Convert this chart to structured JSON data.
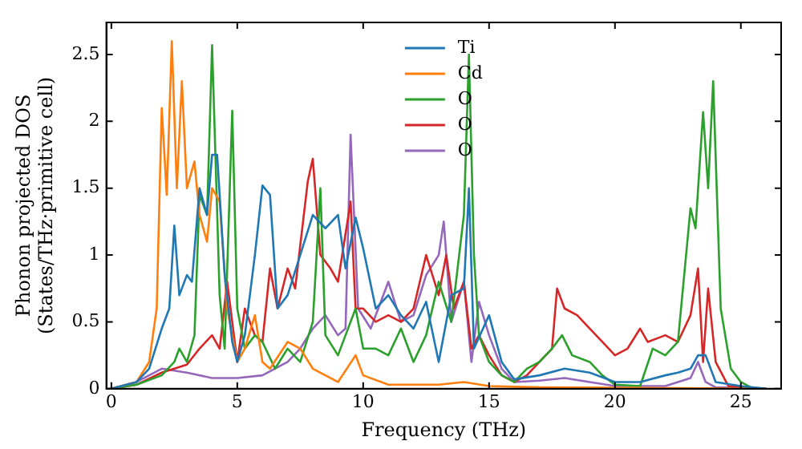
{
  "chart_data": {
    "type": "line",
    "xlabel": "Frequency (THz)",
    "ylabel": "Phonon projected DOS\n(States/THz·primitive cell)",
    "xlim": [
      -0.2,
      26.6
    ],
    "ylim": [
      0,
      2.74
    ],
    "xticks": [
      0,
      5,
      10,
      15,
      20,
      25
    ],
    "yticks": [
      0,
      0.5,
      1,
      1.5,
      2,
      2.5
    ],
    "legend": "top",
    "grid": false,
    "marker": "none",
    "line_style": "solid",
    "series": [
      {
        "name": "Ti",
        "color": "#1f77b4",
        "x": [
          0,
          1,
          1.5,
          2,
          2.3,
          2.5,
          2.7,
          3,
          3.2,
          3.5,
          3.8,
          4,
          4.2,
          4.5,
          4.8,
          5,
          5.3,
          5.7,
          6,
          6.3,
          6.6,
          7,
          7.5,
          8,
          8.5,
          9,
          9.3,
          9.7,
          10,
          10.5,
          11,
          11.5,
          12,
          12.5,
          13,
          13.5,
          14,
          14.2,
          14.4,
          15,
          15.5,
          16,
          17,
          18,
          19,
          20,
          21,
          22,
          22.5,
          23,
          23.3,
          23.6,
          24,
          25,
          26
        ],
        "values": [
          0,
          0.05,
          0.15,
          0.45,
          0.6,
          1.22,
          0.7,
          0.85,
          0.8,
          1.5,
          1.3,
          1.75,
          1.75,
          0.85,
          0.35,
          0.2,
          0.4,
          1.0,
          1.52,
          1.45,
          0.6,
          0.7,
          1.0,
          1.3,
          1.2,
          1.3,
          0.9,
          1.28,
          1.05,
          0.6,
          0.7,
          0.55,
          0.45,
          0.65,
          0.2,
          0.7,
          0.75,
          1.5,
          0.3,
          0.55,
          0.2,
          0.07,
          0.1,
          0.15,
          0.12,
          0.05,
          0.05,
          0.1,
          0.12,
          0.15,
          0.25,
          0.25,
          0.05,
          0.02,
          0
        ]
      },
      {
        "name": "Cd",
        "color": "#ff7f0e",
        "x": [
          0,
          1,
          1.5,
          1.8,
          2,
          2.2,
          2.4,
          2.6,
          2.8,
          3,
          3.3,
          3.5,
          3.8,
          4,
          4.3,
          4.6,
          5,
          5.3,
          5.7,
          6,
          6.3,
          7,
          7.5,
          8,
          9,
          9.7,
          10,
          11,
          13,
          14,
          15,
          17,
          26
        ],
        "values": [
          0,
          0.05,
          0.2,
          0.6,
          2.1,
          1.45,
          2.6,
          1.5,
          2.3,
          1.5,
          1.7,
          1.3,
          1.1,
          1.5,
          1.4,
          0.6,
          0.2,
          0.3,
          0.55,
          0.2,
          0.15,
          0.35,
          0.3,
          0.15,
          0.05,
          0.25,
          0.1,
          0.03,
          0.03,
          0.05,
          0.02,
          0.01,
          0
        ]
      },
      {
        "name": "O",
        "color": "#2ca02c",
        "x": [
          0,
          1,
          2,
          2.5,
          2.7,
          3,
          3.3,
          3.5,
          3.8,
          4,
          4.3,
          4.5,
          4.8,
          5,
          5.3,
          5.7,
          6,
          6.5,
          7,
          7.5,
          8,
          8.3,
          8.5,
          9,
          9.3,
          9.7,
          10,
          10.5,
          11,
          11.5,
          12,
          12.5,
          13,
          13.5,
          14,
          14.2,
          14.4,
          14.6,
          15,
          15.5,
          16,
          16.5,
          17,
          17.5,
          17.9,
          18.3,
          19,
          19.5,
          20,
          21,
          21.5,
          22,
          22.5,
          23,
          23.2,
          23.5,
          23.7,
          23.9,
          24.2,
          24.6,
          25,
          25.5
        ],
        "values": [
          0,
          0.03,
          0.1,
          0.2,
          0.3,
          0.2,
          0.4,
          1.45,
          1.3,
          2.57,
          0.7,
          0.3,
          2.08,
          0.6,
          0.3,
          0.4,
          0.35,
          0.15,
          0.3,
          0.2,
          0.5,
          1.5,
          0.4,
          0.25,
          0.4,
          0.6,
          0.3,
          0.3,
          0.25,
          0.45,
          0.2,
          0.4,
          0.8,
          0.5,
          1.3,
          2.5,
          1.0,
          0.4,
          0.2,
          0.1,
          0.05,
          0.15,
          0.2,
          0.3,
          0.4,
          0.25,
          0.2,
          0.1,
          0.03,
          0.02,
          0.3,
          0.25,
          0.35,
          1.35,
          1.2,
          2.07,
          1.5,
          2.3,
          0.6,
          0.15,
          0.05,
          0
        ]
      },
      {
        "name": "O",
        "color": "#d62728",
        "x": [
          0,
          1,
          2,
          2.5,
          3,
          3.5,
          4,
          4.3,
          4.6,
          5,
          5.3,
          5.7,
          6,
          6.3,
          6.6,
          7,
          7.3,
          7.8,
          8,
          8.3,
          8.7,
          9,
          9.5,
          9.7,
          10,
          10.5,
          11,
          11.5,
          12,
          12.5,
          13,
          13.3,
          13.6,
          14,
          14.3,
          14.6,
          15,
          15.5,
          16,
          16.5,
          17,
          17.5,
          17.7,
          18,
          18.5,
          19,
          19.5,
          20,
          20.5,
          21,
          21.3,
          22,
          22.5,
          23,
          23.3,
          23.5,
          23.7,
          24,
          24.5,
          26
        ],
        "values": [
          0,
          0.03,
          0.12,
          0.15,
          0.18,
          0.3,
          0.4,
          0.3,
          0.8,
          0.2,
          0.6,
          0.4,
          0.35,
          0.9,
          0.6,
          0.9,
          0.75,
          1.55,
          1.72,
          1.0,
          0.9,
          0.8,
          1.4,
          0.6,
          0.6,
          0.5,
          0.55,
          0.5,
          0.6,
          1.0,
          0.7,
          1.0,
          0.6,
          0.8,
          0.3,
          0.4,
          0.25,
          0.1,
          0.05,
          0.1,
          0.2,
          0.3,
          0.75,
          0.6,
          0.55,
          0.45,
          0.35,
          0.25,
          0.3,
          0.45,
          0.35,
          0.4,
          0.35,
          0.55,
          0.9,
          0.2,
          0.75,
          0.2,
          0.02,
          0
        ]
      },
      {
        "name": "O",
        "color": "#9467bd",
        "x": [
          0,
          1,
          2,
          3,
          4,
          5,
          6,
          7,
          7.5,
          8,
          8.5,
          9,
          9.3,
          9.5,
          9.8,
          10.3,
          11,
          11.5,
          12,
          12.5,
          13,
          13.2,
          13.5,
          14,
          14.3,
          14.6,
          15,
          15.5,
          16,
          17,
          18,
          19,
          20,
          22,
          23,
          23.3,
          23.6,
          24,
          26
        ],
        "values": [
          0,
          0.05,
          0.15,
          0.12,
          0.08,
          0.08,
          0.1,
          0.2,
          0.3,
          0.45,
          0.55,
          0.4,
          0.45,
          1.9,
          0.6,
          0.45,
          0.8,
          0.5,
          0.55,
          0.85,
          1.0,
          1.25,
          0.5,
          0.8,
          0.2,
          0.65,
          0.4,
          0.15,
          0.05,
          0.06,
          0.08,
          0.05,
          0.02,
          0.02,
          0.08,
          0.2,
          0.05,
          0.01,
          0
        ]
      }
    ]
  }
}
